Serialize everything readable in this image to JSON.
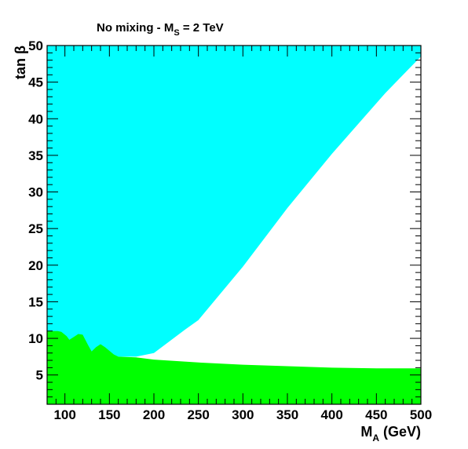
{
  "chart_data": {
    "type": "area",
    "title": {
      "prefix": "No mixing - M",
      "sub": "S",
      "suffix": " = 2 TeV"
    },
    "xlabel": {
      "main": "M",
      "sub": "A",
      "rest": " (GeV)"
    },
    "ylabel": "tan β",
    "xlim": [
      80,
      500
    ],
    "ylim": [
      1,
      50
    ],
    "xticks": [
      100,
      150,
      200,
      250,
      300,
      350,
      400,
      450,
      500
    ],
    "yticks": [
      5,
      10,
      15,
      20,
      25,
      30,
      35,
      40,
      45,
      50
    ],
    "grid": false,
    "colors": {
      "cyan_region": "#00ffff",
      "green_region": "#00ff00"
    },
    "series": [
      {
        "color": "#00ffff",
        "polygon": [
          [
            80,
            50
          ],
          [
            500,
            50
          ],
          [
            500,
            48.5
          ],
          [
            460,
            43.5
          ],
          [
            400,
            35.2
          ],
          [
            350,
            27.8
          ],
          [
            300,
            19.8
          ],
          [
            250,
            12.5
          ],
          [
            235,
            11.2
          ],
          [
            200,
            8.0
          ],
          [
            180,
            7.5
          ],
          [
            80,
            7.5
          ]
        ]
      },
      {
        "color": "#00ff00",
        "polygon": [
          [
            80,
            1
          ],
          [
            80,
            11.0
          ],
          [
            92,
            11.0
          ],
          [
            96,
            10.9
          ],
          [
            102,
            10.3
          ],
          [
            105,
            9.8
          ],
          [
            110,
            10.2
          ],
          [
            115,
            10.6
          ],
          [
            120,
            10.5
          ],
          [
            126,
            9.1
          ],
          [
            130,
            8.2
          ],
          [
            135,
            8.8
          ],
          [
            140,
            9.2
          ],
          [
            145,
            8.8
          ],
          [
            150,
            8.3
          ],
          [
            155,
            7.8
          ],
          [
            160,
            7.5
          ],
          [
            180,
            7.4
          ],
          [
            200,
            7.1
          ],
          [
            250,
            6.7
          ],
          [
            300,
            6.4
          ],
          [
            350,
            6.2
          ],
          [
            400,
            6.0
          ],
          [
            450,
            5.9
          ],
          [
            500,
            5.9
          ],
          [
            500,
            1
          ]
        ]
      }
    ]
  }
}
